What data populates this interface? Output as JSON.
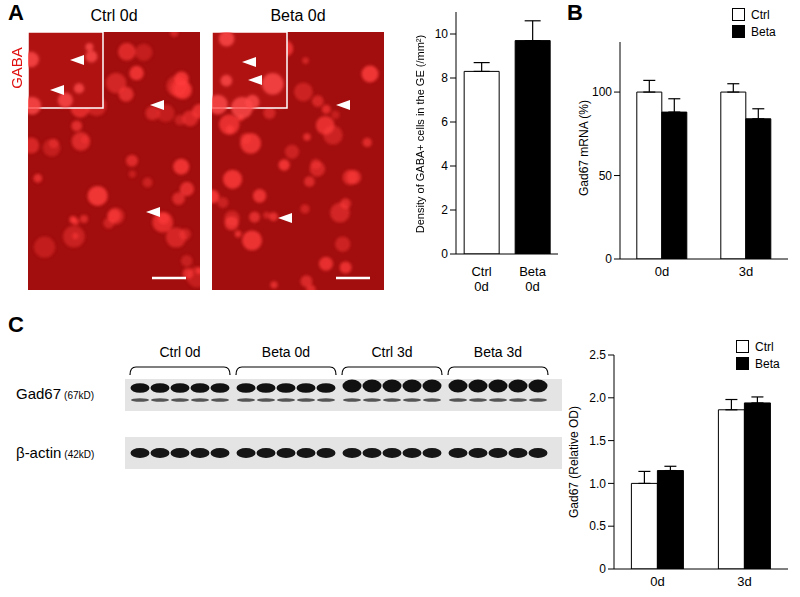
{
  "chart_data": [
    {
      "type": "bar",
      "panel": "A",
      "categories": [
        "Ctrl 0d",
        "Beta 0d"
      ],
      "values": [
        8.3,
        9.7
      ],
      "errors": [
        0.4,
        0.9
      ],
      "colors": [
        "#ffffff",
        "#000000"
      ],
      "y_label": "Density of GABA+ cells in the GE (/mm²)",
      "ylim": [
        0,
        11
      ],
      "yticks": [
        0,
        2,
        4,
        6,
        8,
        10
      ],
      "grid": false
    },
    {
      "type": "bar",
      "panel": "B",
      "categories": [
        "0d",
        "3d"
      ],
      "series": [
        {
          "name": "Ctrl",
          "color": "#ffffff",
          "values": [
            100,
            100
          ],
          "errors": [
            7,
            5
          ]
        },
        {
          "name": "Beta",
          "color": "#000000",
          "values": [
            88,
            84
          ],
          "errors": [
            8,
            6
          ]
        }
      ],
      "y_label": "Gad67 mRNA (%)",
      "ylim": [
        0,
        130
      ],
      "yticks": [
        0,
        50,
        100
      ],
      "legend": "top-right",
      "grid": false
    },
    {
      "type": "bar",
      "panel": "C",
      "categories": [
        "0d",
        "3d"
      ],
      "series": [
        {
          "name": "Ctrl",
          "color": "#ffffff",
          "values": [
            1.0,
            1.86
          ],
          "errors": [
            0.14,
            0.12
          ]
        },
        {
          "name": "Beta",
          "color": "#000000",
          "values": [
            1.15,
            1.94
          ],
          "errors": [
            0.05,
            0.07
          ]
        }
      ],
      "y_label": "Gad67 (Relative OD)",
      "ylim": [
        0,
        2.5
      ],
      "yticks": [
        0,
        0.5,
        {
          "value": 1,
          "label": "1.0"
        },
        1.5,
        {
          "value": 2,
          "label": "2.0"
        },
        2.5
      ],
      "legend": "top-right",
      "grid": false
    }
  ],
  "panels": {
    "A": {
      "letter": "A",
      "stain": "GABA",
      "images": [
        "Ctrl 0d",
        "Beta 0d"
      ]
    },
    "B": {
      "letter": "B"
    },
    "C": {
      "letter": "C",
      "blot": {
        "groups": [
          "Ctrl 0d",
          "Beta 0d",
          "Ctrl 3d",
          "Beta 3d"
        ],
        "rows": [
          {
            "label": "Gad67",
            "size": "(67kD)"
          },
          {
            "label": "β-actin",
            "size": "(42kD)"
          }
        ]
      }
    }
  }
}
